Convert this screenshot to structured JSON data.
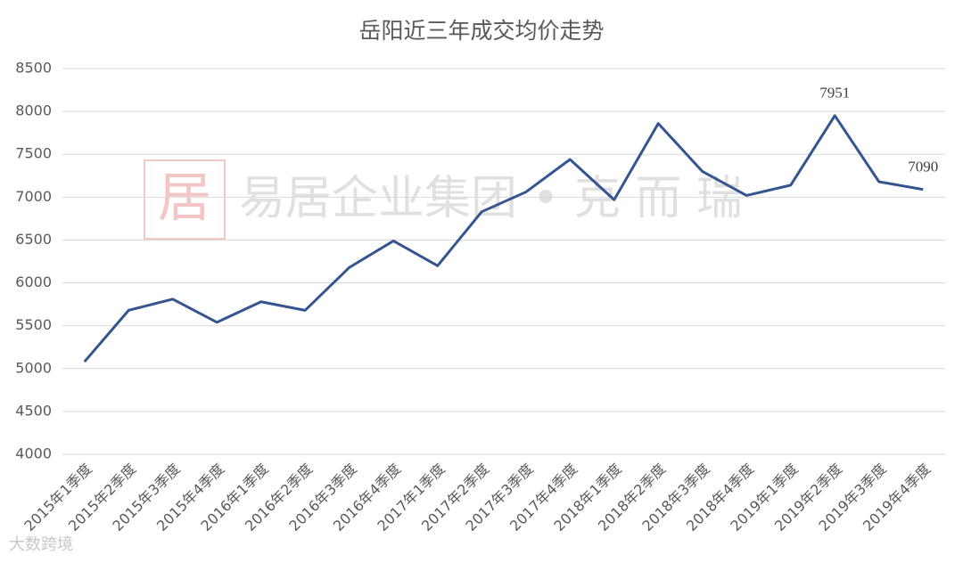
{
  "chart_data": {
    "type": "line",
    "title": "岳阳近三年成交均价走势",
    "categories": [
      "2015年1季度",
      "2015年2季度",
      "2015年3季度",
      "2015年4季度",
      "2016年1季度",
      "2016年2季度",
      "2016年3季度",
      "2016年4季度",
      "2017年1季度",
      "2017年2季度",
      "2017年3季度",
      "2017年4季度",
      "2018年1季度",
      "2018年2季度",
      "2018年3季度",
      "2018年4季度",
      "2019年1季度",
      "2019年2季度",
      "2019年3季度",
      "2019年4季度"
    ],
    "series": [
      {
        "name": "成交均价",
        "color": "#34558f",
        "values": [
          5080,
          5680,
          5810,
          5540,
          5780,
          5680,
          6180,
          6490,
          6200,
          6830,
          7060,
          7440,
          6970,
          7860,
          7300,
          7020,
          7140,
          7951,
          7180,
          7090
        ],
        "value_labels": [
          null,
          null,
          null,
          null,
          null,
          null,
          null,
          null,
          null,
          null,
          null,
          null,
          null,
          null,
          null,
          null,
          null,
          "7951",
          null,
          "7090"
        ]
      }
    ],
    "ylim": [
      4000,
      8500
    ],
    "yticks": [
      4000,
      4500,
      5000,
      5500,
      6000,
      6500,
      7000,
      7500,
      8000,
      8500
    ],
    "grid": true,
    "watermark": "易居企业集团 • 克 而 瑞",
    "corner_watermark": "大数跨境"
  }
}
